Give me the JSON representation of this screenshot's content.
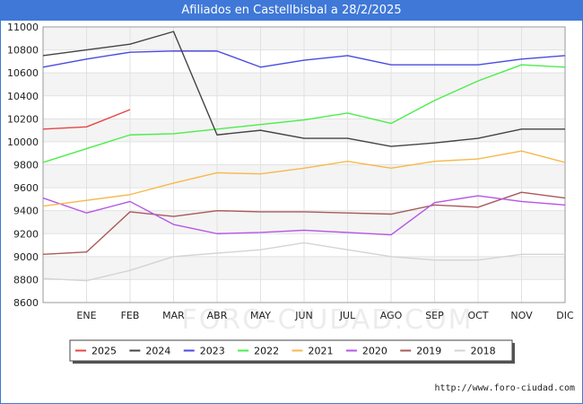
{
  "header": {
    "title": "Afiliados en Castellbisbal a 28/2/2025"
  },
  "footer": {
    "url": "http://www.foro-ciudad.com"
  },
  "watermark": {
    "text": "FORO-CIUDAD.COM"
  },
  "chart_data": {
    "type": "line",
    "title": "Afiliados en Castellbisbal a 28/2/2025",
    "xlabel": "",
    "ylabel": "",
    "categories": [
      "ENE",
      "FEB",
      "MAR",
      "ABR",
      "MAY",
      "JUN",
      "JUL",
      "AGO",
      "SEP",
      "OCT",
      "NOV",
      "DIC"
    ],
    "ylim": [
      8600,
      11000
    ],
    "yticks": [
      8600,
      8800,
      9000,
      9200,
      9400,
      9600,
      9800,
      10000,
      10200,
      10400,
      10600,
      10800,
      11000
    ],
    "grid": "horizontal",
    "legend_position": "bottom",
    "series": [
      {
        "name": "2025",
        "color": "#e84545",
        "x": [
          0,
          1,
          2
        ],
        "values": [
          10110,
          10130,
          10280
        ]
      },
      {
        "name": "2024",
        "color": "#444444",
        "x": [
          0,
          1,
          2,
          3,
          4,
          5,
          6,
          7,
          8,
          9,
          10,
          11,
          12
        ],
        "values": [
          10750,
          10800,
          10850,
          10960,
          10060,
          10100,
          10030,
          10030,
          9960,
          9990,
          10030,
          10110,
          10110
        ]
      },
      {
        "name": "2023",
        "color": "#4a4ae0",
        "x": [
          0,
          1,
          2,
          3,
          4,
          5,
          6,
          7,
          8,
          9,
          10,
          11,
          12
        ],
        "values": [
          10650,
          10720,
          10780,
          10790,
          10790,
          10650,
          10710,
          10750,
          10670,
          10670,
          10670,
          10720,
          10750
        ]
      },
      {
        "name": "2022",
        "color": "#4aee4a",
        "x": [
          0,
          1,
          2,
          3,
          4,
          5,
          6,
          7,
          8,
          9,
          10,
          11,
          12
        ],
        "values": [
          9820,
          9940,
          10060,
          10070,
          10110,
          10150,
          10190,
          10250,
          10160,
          10360,
          10530,
          10670,
          10650
        ]
      },
      {
        "name": "2021",
        "color": "#f7b84a",
        "x": [
          0,
          1,
          2,
          3,
          4,
          5,
          6,
          7,
          8,
          9,
          10,
          11,
          12
        ],
        "values": [
          9440,
          9490,
          9540,
          9640,
          9730,
          9720,
          9770,
          9830,
          9770,
          9830,
          9850,
          9920,
          9820
        ]
      },
      {
        "name": "2020",
        "color": "#b455e8",
        "x": [
          0,
          1,
          2,
          3,
          4,
          5,
          6,
          7,
          8,
          9,
          10,
          11,
          12
        ],
        "values": [
          9510,
          9380,
          9480,
          9280,
          9200,
          9210,
          9230,
          9210,
          9190,
          9470,
          9530,
          9480,
          9450
        ]
      },
      {
        "name": "2019",
        "color": "#a85a5a",
        "x": [
          0,
          1,
          2,
          3,
          4,
          5,
          6,
          7,
          8,
          9,
          10,
          11,
          12
        ],
        "values": [
          9020,
          9040,
          9390,
          9350,
          9400,
          9390,
          9390,
          9380,
          9370,
          9450,
          9430,
          9560,
          9510
        ]
      },
      {
        "name": "2018",
        "color": "#d4d4d4",
        "x": [
          0,
          1,
          2,
          3,
          4,
          5,
          6,
          7,
          8,
          9,
          10,
          11,
          12
        ],
        "values": [
          8810,
          8790,
          8880,
          9000,
          9030,
          9060,
          9120,
          9060,
          9000,
          8970,
          8970,
          9020,
          9020
        ]
      }
    ]
  }
}
